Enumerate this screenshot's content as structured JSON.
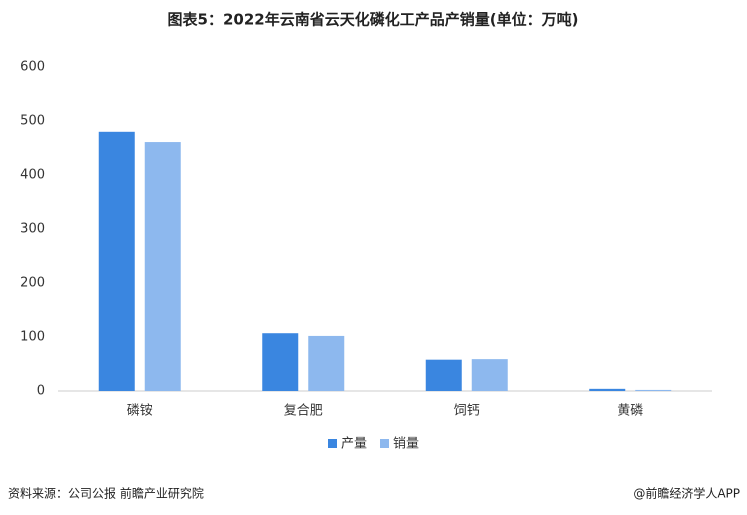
{
  "chart_data": {
    "type": "bar",
    "title": "图表5：2022年云南省云天化磷化工产品产销量(单位：万吨)",
    "categories": [
      "磷铵",
      "复合肥",
      "饲钙",
      "黄磷"
    ],
    "series": [
      {
        "name": "产量",
        "color": "#3a86e0",
        "values": [
          480,
          107,
          58,
          4
        ]
      },
      {
        "name": "销量",
        "color": "#8db8ee",
        "values": [
          461,
          102,
          59,
          2
        ]
      }
    ],
    "ylim": [
      0,
      600
    ],
    "yticks": [
      0,
      100,
      200,
      300,
      400,
      500,
      600
    ],
    "grid": false,
    "source": "资料来源：公司公报 前瞻产业研究院",
    "credit": "@前瞻经济学人APP"
  }
}
